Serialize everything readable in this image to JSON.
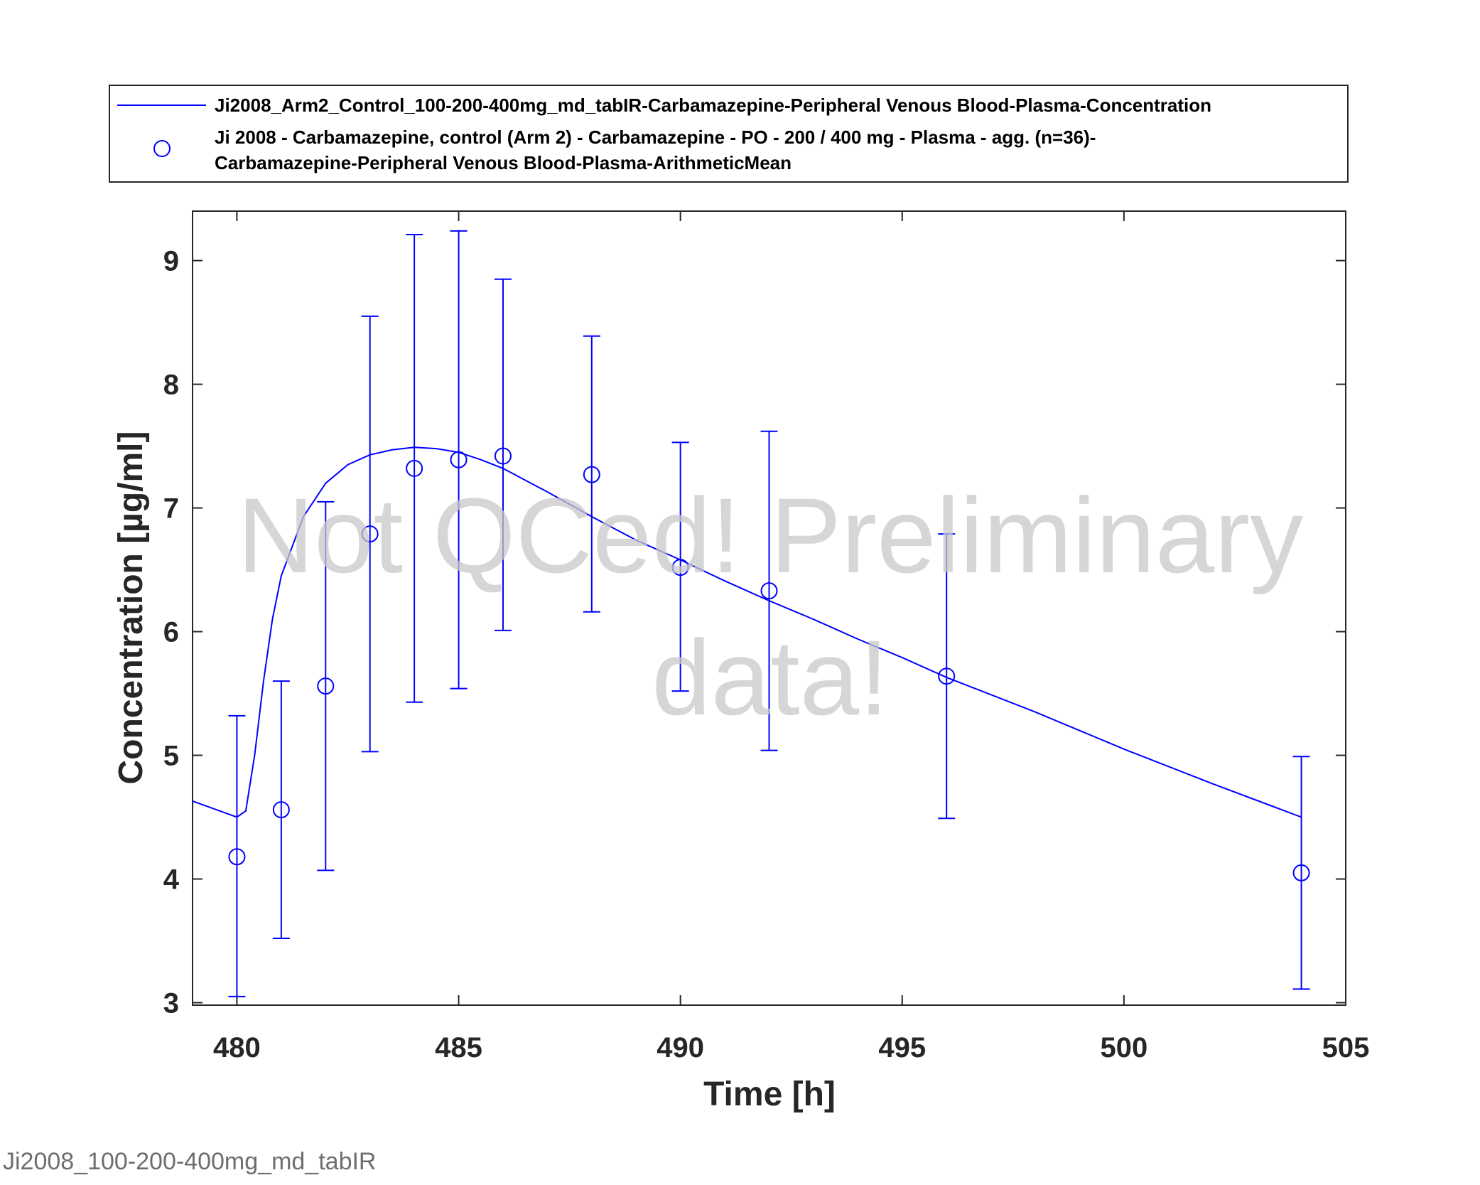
{
  "chart_data": {
    "type": "line",
    "xlabel": "Time [h]",
    "ylabel": "Concentration [µg/ml]",
    "xlim": [
      479,
      505
    ],
    "ylim": [
      2.98,
      9.4
    ],
    "xticks": [
      480,
      485,
      490,
      495,
      500,
      505
    ],
    "yticks": [
      3,
      4,
      5,
      6,
      7,
      8,
      9
    ],
    "grid": false,
    "legend_position": "top",
    "color": "#0000ff",
    "series": [
      {
        "name": "Ji2008_Arm2_Control_100-200-400mg_md_tabIR-Carbamazepine-Peripheral Venous Blood-Plasma-Concentration",
        "style": "line",
        "x": [
          479,
          480,
          480.2,
          480.4,
          480.6,
          480.8,
          481,
          481.5,
          482,
          482.5,
          483,
          483.5,
          484,
          484.5,
          485,
          485.5,
          486,
          487,
          488,
          489,
          490,
          491,
          492,
          493,
          494,
          495,
          496,
          498,
          500,
          502,
          504
        ],
        "y": [
          4.63,
          4.5,
          4.55,
          5.0,
          5.6,
          6.1,
          6.45,
          6.93,
          7.2,
          7.35,
          7.43,
          7.47,
          7.49,
          7.48,
          7.45,
          7.39,
          7.32,
          7.13,
          6.93,
          6.74,
          6.58,
          6.41,
          6.25,
          6.1,
          5.94,
          5.79,
          5.63,
          5.35,
          5.05,
          4.77,
          4.5
        ]
      },
      {
        "name": "Ji 2008 - Carbamazepine, control (Arm 2) - Carbamazepine - PO - 200 / 400 mg - Plasma - agg. (n=36)-\nCarbamazepine-Peripheral Venous Blood-Plasma-ArithmeticMean",
        "style": "marker",
        "x": [
          480,
          481,
          482,
          483,
          484,
          485,
          486,
          488,
          490,
          492,
          496,
          504
        ],
        "y": [
          4.18,
          4.56,
          5.56,
          6.79,
          7.32,
          7.39,
          7.42,
          7.27,
          6.52,
          6.33,
          5.64,
          4.05
        ],
        "err_low": [
          3.05,
          3.52,
          4.07,
          5.03,
          5.43,
          5.54,
          6.01,
          6.16,
          5.52,
          5.04,
          4.49,
          3.11
        ],
        "err_high": [
          5.32,
          5.6,
          7.05,
          8.55,
          9.21,
          9.24,
          8.85,
          8.39,
          7.53,
          7.62,
          6.79,
          4.99
        ]
      }
    ]
  },
  "legend": {
    "entries": [
      {
        "lines": [
          "Ji2008_Arm2_Control_100-200-400mg_md_tabIR-Carbamazepine-Peripheral Venous Blood-Plasma-Concentration"
        ]
      },
      {
        "lines": [
          "Ji 2008 - Carbamazepine, control (Arm 2) - Carbamazepine - PO - 200 / 400 mg - Plasma - agg. (n=36)-",
          "Carbamazepine-Peripheral Venous Blood-Plasma-ArithmeticMean"
        ]
      }
    ]
  },
  "watermark": {
    "line1": "Not QCed! Preliminary",
    "line2": "data!"
  },
  "footer": {
    "text": "Ji2008_100-200-400mg_md_tabIR"
  }
}
